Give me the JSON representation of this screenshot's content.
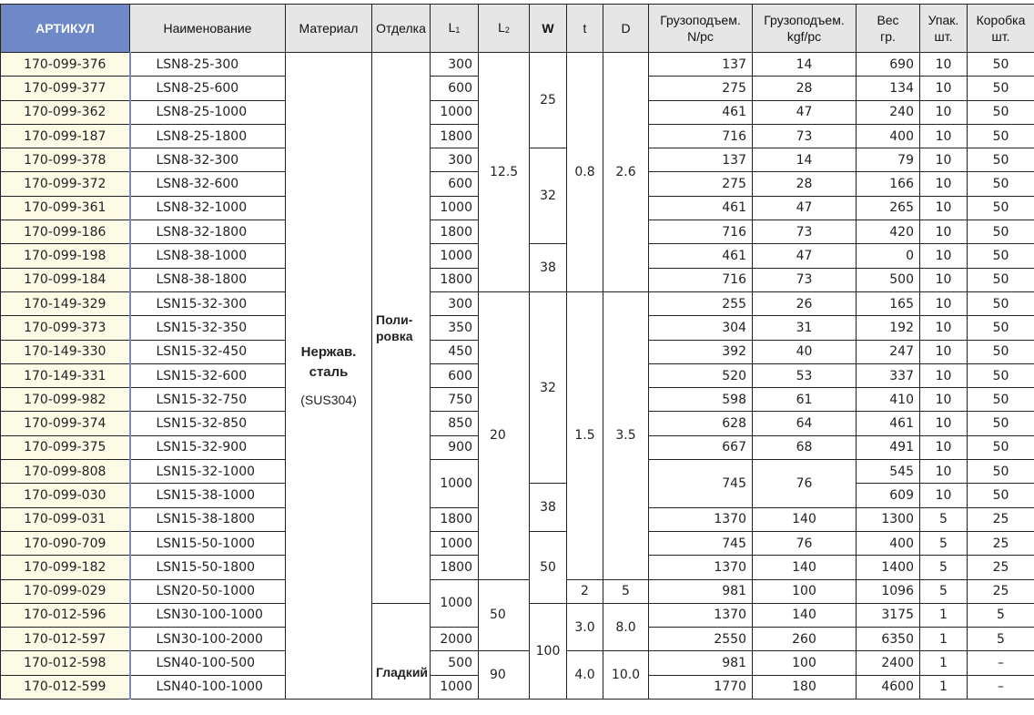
{
  "header": {
    "article": "АРТИКУЛ",
    "name": "Наименование",
    "material": "Материал",
    "finish": "Отделка",
    "l1": "L",
    "l1_sub": "1",
    "l2": "L",
    "l2_sub": "2",
    "w": "W",
    "t": "t",
    "d": "D",
    "load_n": [
      "Грузоподъем.",
      "N/pc"
    ],
    "load_kgf": [
      "Грузоподъем.",
      "kgf/pc"
    ],
    "weight": [
      "Вес",
      "гр."
    ],
    "pack": [
      "Упак.",
      "шт."
    ],
    "box": [
      "Коробка",
      "шт."
    ]
  },
  "material": {
    "line1": "Нержав.",
    "line2": "сталь",
    "grade": "(SUS304)"
  },
  "finish": {
    "polished": [
      "Поли-",
      "ровка"
    ],
    "smooth": "Гладкий"
  },
  "groups": {
    "l2": [
      "12.5",
      "20",
      "50",
      "90"
    ],
    "w": [
      "25",
      "32",
      "38",
      "32",
      "38",
      "50",
      "100"
    ],
    "t": [
      "0.8",
      "1.5",
      "2",
      "3.0",
      "4.0"
    ],
    "d": [
      "2.6",
      "3.5",
      "5",
      "8.0",
      "10.0"
    ]
  },
  "rows": [
    {
      "art": "170-099-376",
      "name": "LSN8-25-300",
      "l1": "300",
      "n": "137",
      "kgf": "14",
      "wt": "690",
      "pack": "10",
      "box": "50"
    },
    {
      "art": "170-099-377",
      "name": "LSN8-25-600",
      "l1": "600",
      "n": "275",
      "kgf": "28",
      "wt": "134",
      "pack": "10",
      "box": "50"
    },
    {
      "art": "170-099-362",
      "name": "LSN8-25-1000",
      "l1": "1000",
      "n": "461",
      "kgf": "47",
      "wt": "240",
      "pack": "10",
      "box": "50"
    },
    {
      "art": "170-099-187",
      "name": "LSN8-25-1800",
      "l1": "1800",
      "n": "716",
      "kgf": "73",
      "wt": "400",
      "pack": "10",
      "box": "50"
    },
    {
      "art": "170-099-378",
      "name": "LSN8-32-300",
      "l1": "300",
      "n": "137",
      "kgf": "14",
      "wt": "79",
      "pack": "10",
      "box": "50"
    },
    {
      "art": "170-099-372",
      "name": "LSN8-32-600",
      "l1": "600",
      "n": "275",
      "kgf": "28",
      "wt": "166",
      "pack": "10",
      "box": "50"
    },
    {
      "art": "170-099-361",
      "name": "LSN8-32-1000",
      "l1": "1000",
      "n": "461",
      "kgf": "47",
      "wt": "265",
      "pack": "10",
      "box": "50"
    },
    {
      "art": "170-099-186",
      "name": "LSN8-32-1800",
      "l1": "1800",
      "n": "716",
      "kgf": "73",
      "wt": "420",
      "pack": "10",
      "box": "50"
    },
    {
      "art": "170-099-198",
      "name": "LSN8-38-1000",
      "l1": "1000",
      "n": "461",
      "kgf": "47",
      "wt": "0",
      "pack": "10",
      "box": "50"
    },
    {
      "art": "170-099-184",
      "name": "LSN8-38-1800",
      "l1": "1800",
      "n": "716",
      "kgf": "73",
      "wt": "500",
      "pack": "10",
      "box": "50"
    },
    {
      "art": "170-149-329",
      "name": "LSN15-32-300",
      "l1": "300",
      "n": "255",
      "kgf": "26",
      "wt": "165",
      "pack": "10",
      "box": "50"
    },
    {
      "art": "170-099-373",
      "name": "LSN15-32-350",
      "l1": "350",
      "n": "304",
      "kgf": "31",
      "wt": "192",
      "pack": "10",
      "box": "50"
    },
    {
      "art": "170-149-330",
      "name": "LSN15-32-450",
      "l1": "450",
      "n": "392",
      "kgf": "40",
      "wt": "247",
      "pack": "10",
      "box": "50"
    },
    {
      "art": "170-149-331",
      "name": "LSN15-32-600",
      "l1": "600",
      "n": "520",
      "kgf": "53",
      "wt": "337",
      "pack": "10",
      "box": "50"
    },
    {
      "art": "170-099-982",
      "name": "LSN15-32-750",
      "l1": "750",
      "n": "598",
      "kgf": "61",
      "wt": "410",
      "pack": "10",
      "box": "50"
    },
    {
      "art": "170-099-374",
      "name": "LSN15-32-850",
      "l1": "850",
      "n": "628",
      "kgf": "64",
      "wt": "461",
      "pack": "10",
      "box": "50"
    },
    {
      "art": "170-099-375",
      "name": "LSN15-32-900",
      "l1": "900",
      "n": "667",
      "kgf": "68",
      "wt": "491",
      "pack": "10",
      "box": "50"
    },
    {
      "art": "170-099-808",
      "name": "LSN15-32-1000",
      "l1": "1000",
      "n": "745",
      "kgf": "76",
      "wt": "545",
      "pack": "10",
      "box": "50"
    },
    {
      "art": "170-099-030",
      "name": "LSN15-38-1000",
      "wt": "609",
      "pack": "10",
      "box": "50"
    },
    {
      "art": "170-099-031",
      "name": "LSN15-38-1800",
      "l1": "1800",
      "n": "1370",
      "kgf": "140",
      "wt": "1300",
      "pack": "5",
      "box": "25"
    },
    {
      "art": "170-090-709",
      "name": "LSN15-50-1000",
      "l1": "1000",
      "n": "745",
      "kgf": "76",
      "wt": "400",
      "pack": "5",
      "box": "25"
    },
    {
      "art": "170-099-182",
      "name": "LSN15-50-1800",
      "l1": "1800",
      "n": "1370",
      "kgf": "140",
      "wt": "1400",
      "pack": "5",
      "box": "25"
    },
    {
      "art": "170-099-029",
      "name": "LSN20-50-1000",
      "l1": "1000",
      "n": "981",
      "kgf": "100",
      "wt": "1096",
      "pack": "5",
      "box": "25"
    },
    {
      "art": "170-012-596",
      "name": "LSN30-100-1000",
      "n": "1370",
      "kgf": "140",
      "wt": "3175",
      "pack": "1",
      "box": "5"
    },
    {
      "art": "170-012-597",
      "name": "LSN30-100-2000",
      "l1": "2000",
      "n": "2550",
      "kgf": "260",
      "wt": "6350",
      "pack": "1",
      "box": "5"
    },
    {
      "art": "170-012-598",
      "name": "LSN40-100-500",
      "l1": "500",
      "n": "981",
      "kgf": "100",
      "wt": "2400",
      "pack": "1",
      "box": "–"
    },
    {
      "art": "170-012-599",
      "name": "LSN40-100-1000",
      "l1": "1000",
      "n": "1770",
      "kgf": "180",
      "wt": "4600",
      "pack": "1",
      "box": "–"
    }
  ]
}
